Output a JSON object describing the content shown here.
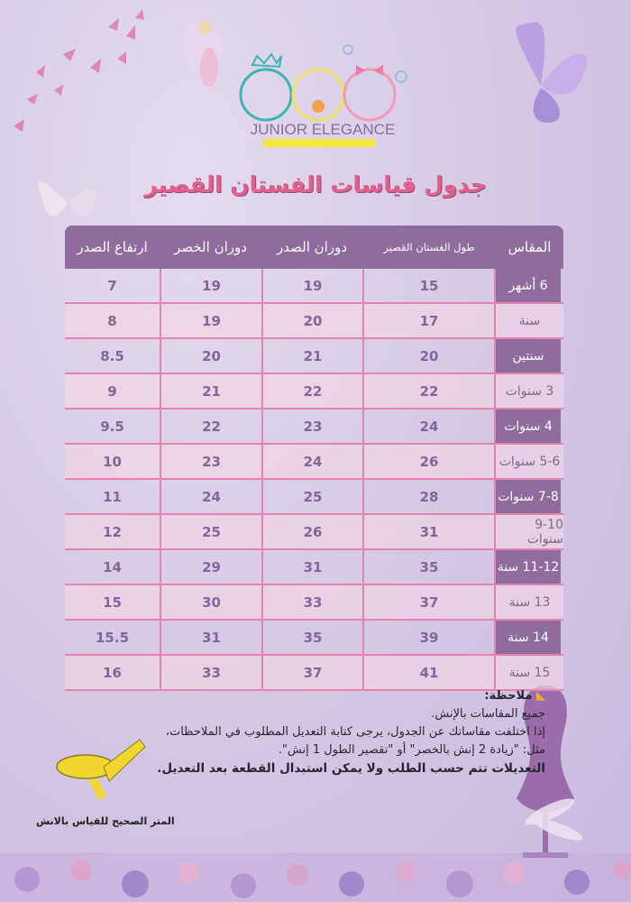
{
  "brand": {
    "logo_text": "JUNIOR ELEGANCE"
  },
  "title": "جدول قياسات الفستان القصير",
  "table": {
    "headers": [
      "المقاس",
      "طول الفستان القصير",
      "دوران الصدر",
      "دوران الخصر",
      "ارتفاع الصدر"
    ],
    "rows": [
      [
        "6 أشهر",
        "15",
        "19",
        "19",
        "7"
      ],
      [
        "سنة",
        "17",
        "20",
        "19",
        "8"
      ],
      [
        "سنتين",
        "20",
        "21",
        "20",
        "8.5"
      ],
      [
        "3 سنوات",
        "22",
        "22",
        "21",
        "9"
      ],
      [
        "4 سنوات",
        "24",
        "23",
        "22",
        "9.5"
      ],
      [
        "5-6 سنوات",
        "26",
        "24",
        "23",
        "10"
      ],
      [
        "7-8 سنوات",
        "28",
        "25",
        "24",
        "11"
      ],
      [
        "9-10 سنوات",
        "31",
        "26",
        "25",
        "12"
      ],
      [
        "11-12 سنة",
        "35",
        "31",
        "29",
        "14"
      ],
      [
        "13 سنة",
        "37",
        "33",
        "30",
        "15"
      ],
      [
        "14 سنة",
        "39",
        "35",
        "31",
        "15.5"
      ],
      [
        "15 سنة",
        "41",
        "37",
        "33",
        "16"
      ]
    ]
  },
  "notes": {
    "heading": "ملاحظة:",
    "lines": [
      "جميع المقاسات بالإنش.",
      "إذا اختلفت مقاساتك عن الجدول، يرجى كتابة التعديل المطلوب في الملاحظات،",
      "مثل: \"زيادة 2 إنش بالخصر\" أو \"تقصير الطول 1 إنش\".",
      "التعديلات تتم حسب الطلب ولا يمكن استبدال القطعة بعد التعديل."
    ]
  },
  "tape_caption": "المتر الصحيح  للقياس بالانش",
  "colors": {
    "header_bg": "#8f6b9e",
    "title": "#e2608a",
    "grid": "#e283b0",
    "background": "#d6cae6"
  }
}
